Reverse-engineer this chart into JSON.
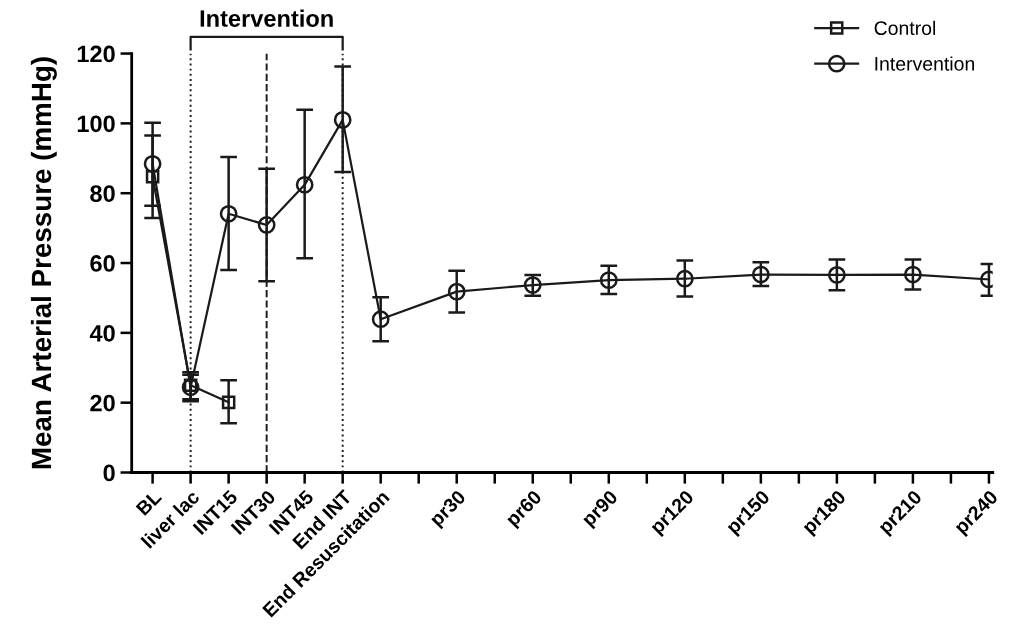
{
  "chart_data": {
    "type": "line",
    "ylabel": "Mean Arterial Pressure (mmHg)",
    "categories": [
      "BL",
      "liver lac",
      "INT15",
      "INT30",
      "INT45",
      "End INT",
      "End Resuscitation",
      null,
      "pr30",
      null,
      "pr60",
      null,
      "pr90",
      null,
      "pr120",
      null,
      "pr150",
      null,
      "pr180",
      null,
      "pr210",
      null,
      "pr240"
    ],
    "ylim": [
      0,
      120
    ],
    "yticks": [
      0,
      20,
      40,
      60,
      80,
      100,
      120
    ],
    "series": [
      {
        "name": "Control",
        "color": "#1a1a1a",
        "marker": "square",
        "values": [
          84.7,
          25,
          20.1,
          null,
          null,
          null,
          null,
          null,
          null,
          null,
          null,
          null,
          null,
          null,
          null,
          null,
          null,
          null,
          null,
          null,
          null,
          null,
          null
        ],
        "errors": [
          [
            76.4,
            96.5
          ],
          [
            21,
            28.7
          ],
          [
            14.1,
            26.4
          ],
          null,
          null,
          null,
          null,
          null,
          null,
          null,
          null,
          null,
          null,
          null,
          null,
          null,
          null,
          null,
          null,
          null,
          null,
          null,
          null
        ]
      },
      {
        "name": "Intervention",
        "color": "#1a1a1a",
        "marker": "circle",
        "values": [
          88.4,
          24.4,
          74.1,
          70.9,
          82.4,
          101,
          43.9,
          null,
          51.8,
          null,
          53.7,
          null,
          55.1,
          null,
          55.5,
          null,
          56.7,
          null,
          56.6,
          null,
          56.7,
          null,
          55.3
        ],
        "errors": [
          [
            72.9,
            100.2
          ],
          [
            20.4,
            28
          ],
          [
            58,
            90.4
          ],
          [
            54.8,
            87
          ],
          [
            61.4,
            103.9
          ],
          [
            86.1,
            116.3
          ],
          [
            37.6,
            50.2
          ],
          null,
          [
            45.8,
            57.8
          ],
          null,
          [
            50.6,
            56.6
          ],
          null,
          [
            51.1,
            59.2
          ],
          null,
          [
            50.4,
            60.7
          ],
          null,
          [
            53.4,
            60.2
          ],
          null,
          [
            52.2,
            61
          ],
          null,
          [
            52.4,
            61
          ],
          null,
          [
            50.6,
            59.7
          ]
        ]
      }
    ],
    "ref_lines": [
      {
        "axis": "x",
        "value": "liver lac",
        "line_style": "dotted"
      },
      {
        "axis": "x",
        "value": "INT30",
        "line_style": "dashed"
      },
      {
        "axis": "x",
        "value": "End INT",
        "line_style": "dotted"
      }
    ],
    "annotations": [
      "Intervention"
    ],
    "legend": "top right",
    "grid": false
  }
}
